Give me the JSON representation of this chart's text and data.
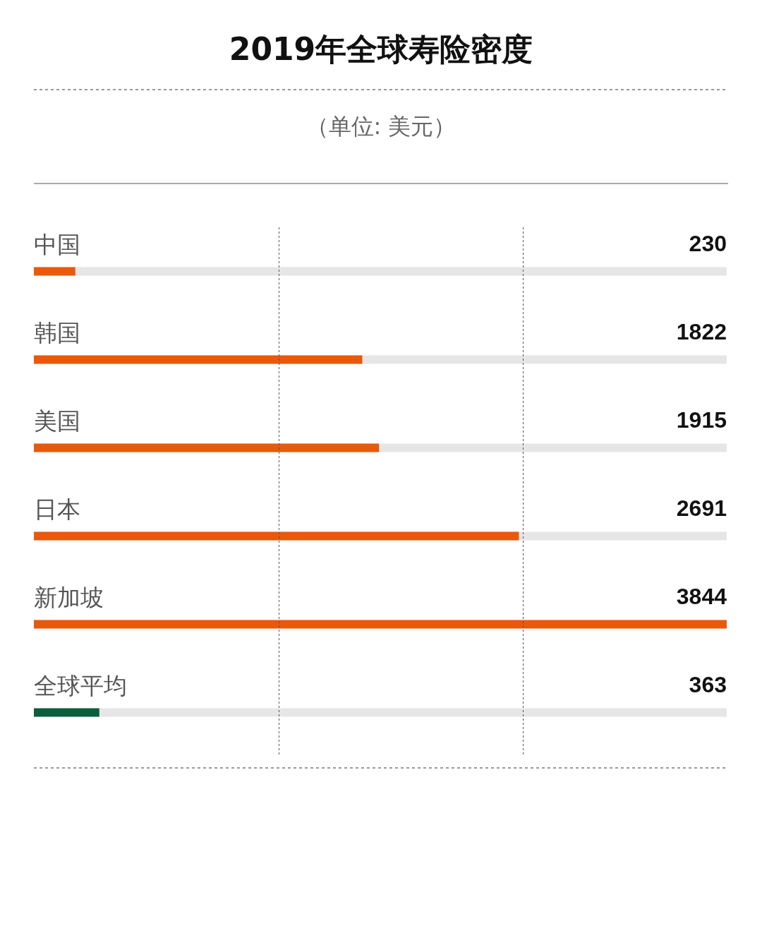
{
  "chart_data": {
    "type": "bar",
    "orientation": "horizontal",
    "title": "2019年全球寿险密度",
    "subtitle": "（单位: 美元）",
    "categories": [
      "中国",
      "韩国",
      "美国",
      "日本",
      "新加坡",
      "全球平均"
    ],
    "values": [
      230,
      1822,
      1915,
      2691,
      3844,
      363
    ],
    "colors": [
      "#e8590c",
      "#e8590c",
      "#e8590c",
      "#e8590c",
      "#e8590c",
      "#0b5e3c"
    ],
    "xlim": [
      0,
      3844
    ],
    "ref_lines": [
      {
        "axis": "x",
        "value": 1358,
        "line_style": "dashed",
        "color": "#555555"
      },
      {
        "axis": "x",
        "value": 2713,
        "line_style": "dashed",
        "color": "#555555"
      }
    ],
    "data_labels": true
  }
}
